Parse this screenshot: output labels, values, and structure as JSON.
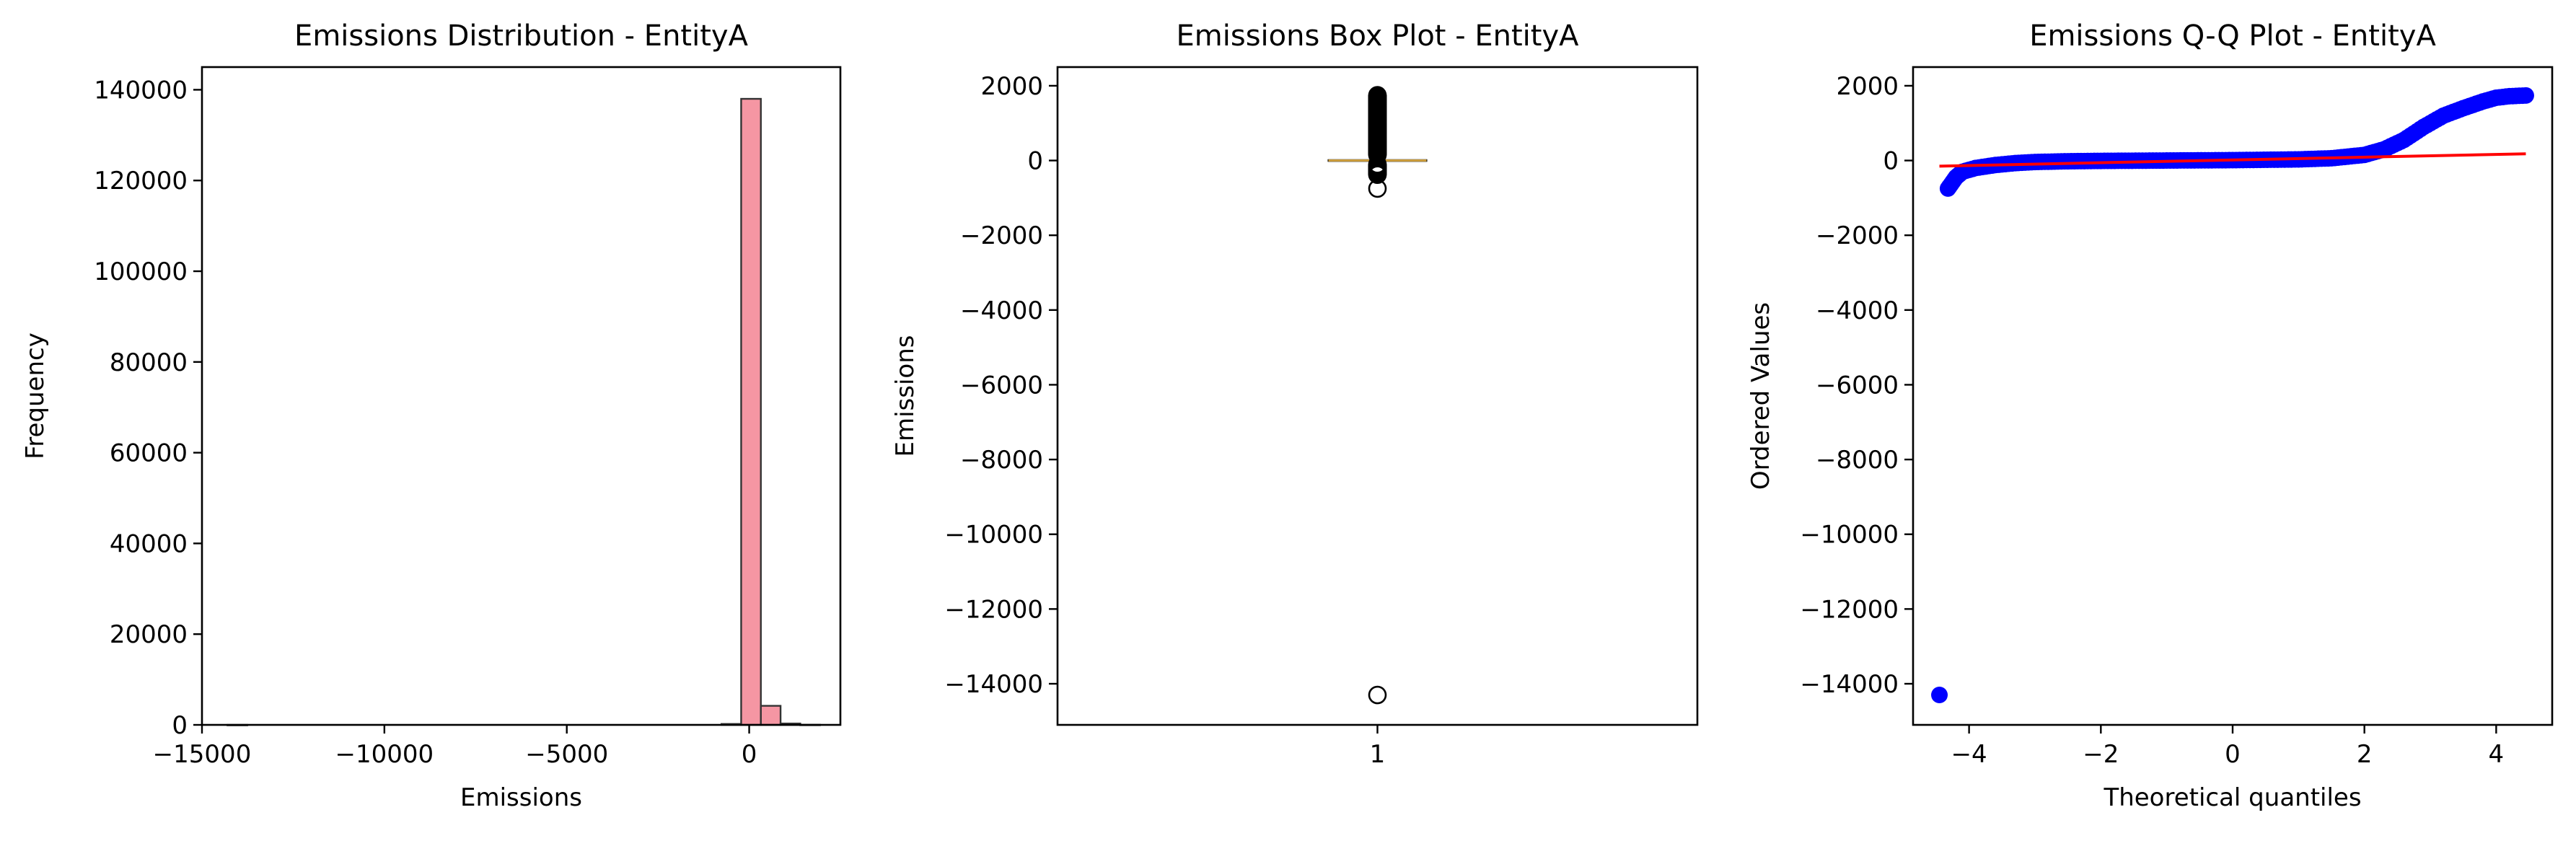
{
  "chart_data": [
    {
      "type": "bar",
      "title": "Emissions Distribution - EntityA",
      "xlabel": "Emissions",
      "ylabel": "Frequency",
      "xlim": [
        -15000,
        2500
      ],
      "ylim": [
        0,
        145000
      ],
      "xticks": [
        -15000,
        -10000,
        -5000,
        0
      ],
      "xtick_labels": [
        "−15000",
        "−10000",
        "−5000",
        "0"
      ],
      "yticks": [
        0,
        20000,
        40000,
        60000,
        80000,
        100000,
        120000,
        140000
      ],
      "ytick_labels": [
        "0",
        "20000",
        "40000",
        "60000",
        "80000",
        "100000",
        "120000",
        "140000"
      ],
      "color": "#f4909e",
      "edge_color": "#333333",
      "bins": [
        {
          "x0": -14300,
          "x1": -13760,
          "value": 1
        },
        {
          "x0": -760,
          "x1": -220,
          "value": 200
        },
        {
          "x0": -220,
          "x1": 320,
          "value": 138000
        },
        {
          "x0": 320,
          "x1": 860,
          "value": 4200
        },
        {
          "x0": 860,
          "x1": 1400,
          "value": 300
        },
        {
          "x0": 1400,
          "x1": 1940,
          "value": 30
        }
      ]
    },
    {
      "type": "box",
      "title": "Emissions Box Plot - EntityA",
      "xlabel": "",
      "ylabel": "Emissions",
      "ylim": [
        -15100,
        2500
      ],
      "yticks": [
        2000,
        0,
        -2000,
        -4000,
        -6000,
        -8000,
        -10000,
        -12000,
        -14000
      ],
      "ytick_labels": [
        "2000",
        "0",
        "−2000",
        "−4000",
        "−6000",
        "−8000",
        "−10000",
        "−12000",
        "−14000"
      ],
      "category": "1",
      "q1": -15,
      "median": 0,
      "q3": 15,
      "whisker_low": -60,
      "whisker_high": 60,
      "median_color": "#c89a3a",
      "outlier_range_high": [
        150,
        1750
      ],
      "outlier_range_low": [
        -380,
        -100
      ],
      "outliers_extra": [
        -750,
        -14300
      ]
    },
    {
      "type": "scatter",
      "title": "Emissions Q-Q Plot - EntityA",
      "xlabel": "Theoretical quantiles",
      "ylabel": "Ordered Values",
      "xlim": [
        -4.85,
        4.85
      ],
      "ylim": [
        -15100,
        2500
      ],
      "xticks": [
        -4,
        -2,
        0,
        2,
        4
      ],
      "xtick_labels": [
        "−4",
        "−2",
        "0",
        "2",
        "4"
      ],
      "yticks": [
        2000,
        0,
        -2000,
        -4000,
        -6000,
        -8000,
        -10000,
        -12000,
        -14000
      ],
      "ytick_labels": [
        "2000",
        "0",
        "−2000",
        "−4000",
        "−6000",
        "−8000",
        "−10000",
        "−12000",
        "−14000"
      ],
      "point_color": "#0000ff",
      "line_color": "#ff0000",
      "fit_line": {
        "x": [
          -4.45,
          4.45
        ],
        "y": [
          -150,
          180
        ]
      },
      "outliers": [
        {
          "x": -4.45,
          "y": -14300
        },
        {
          "x": -4.32,
          "y": -750
        }
      ],
      "curve": [
        {
          "x": -4.3,
          "y": -700
        },
        {
          "x": -4.2,
          "y": -450
        },
        {
          "x": -4.1,
          "y": -300
        },
        {
          "x": -3.9,
          "y": -200
        },
        {
          "x": -3.6,
          "y": -120
        },
        {
          "x": -3.3,
          "y": -70
        },
        {
          "x": -3.0,
          "y": -40
        },
        {
          "x": -2.5,
          "y": -20
        },
        {
          "x": -2.0,
          "y": -10
        },
        {
          "x": -1.0,
          "y": 0
        },
        {
          "x": 0,
          "y": 10
        },
        {
          "x": 1.0,
          "y": 30
        },
        {
          "x": 1.5,
          "y": 60
        },
        {
          "x": 2.0,
          "y": 150
        },
        {
          "x": 2.3,
          "y": 300
        },
        {
          "x": 2.6,
          "y": 550
        },
        {
          "x": 2.9,
          "y": 900
        },
        {
          "x": 3.2,
          "y": 1200
        },
        {
          "x": 3.5,
          "y": 1400
        },
        {
          "x": 3.8,
          "y": 1580
        },
        {
          "x": 4.0,
          "y": 1680
        },
        {
          "x": 4.2,
          "y": 1720
        },
        {
          "x": 4.45,
          "y": 1740
        }
      ]
    }
  ]
}
